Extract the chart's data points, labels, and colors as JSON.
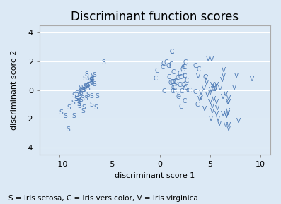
{
  "title": "Discriminant function scores",
  "xlabel": "discriminant score 1",
  "ylabel": "discriminant score 2",
  "xlim": [
    -12,
    11
  ],
  "ylim": [
    -4.5,
    4.5
  ],
  "xticks": [
    -10,
    -5,
    0,
    5,
    10
  ],
  "yticks": [
    -4,
    -2,
    0,
    2,
    4
  ],
  "background_color": "#dce9f5",
  "plot_bg_color": "#dce9f5",
  "point_color": "#4d7ab5",
  "caption": "S = Iris setosa, C = Iris versicolor, V = Iris virginica",
  "title_fontsize": 12,
  "label_fontsize": 8,
  "tick_fontsize": 8,
  "caption_fontsize": 7.5
}
